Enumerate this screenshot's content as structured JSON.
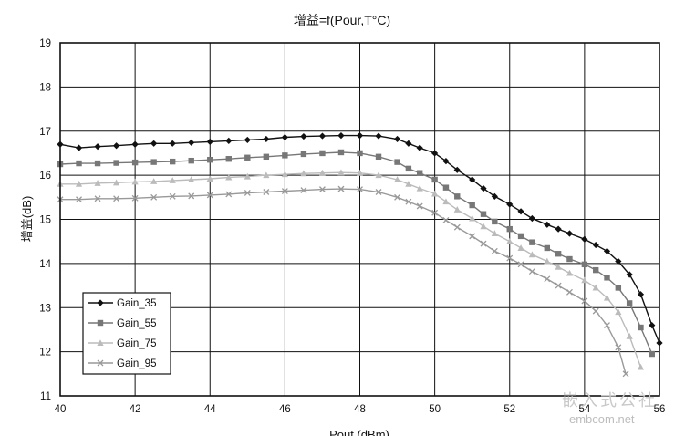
{
  "chart_data": {
    "type": "line",
    "title": "增益=f(Pour,T°C)",
    "xlabel": "Pout (dBm)",
    "ylabel": "增益(dB)",
    "xlim": [
      40,
      56
    ],
    "ylim": [
      11,
      19
    ],
    "xticks": [
      "40",
      "42",
      "44",
      "46",
      "48",
      "50",
      "52",
      "54",
      "56"
    ],
    "yticks": [
      "11",
      "12",
      "13",
      "14",
      "15",
      "16",
      "17",
      "18",
      "19"
    ],
    "grid": true,
    "legend_position": "bottom-left",
    "series": [
      {
        "name": "Gain_35",
        "color": "#111111",
        "marker": "diamond",
        "x": [
          40.0,
          40.5,
          41.0,
          41.5,
          42.0,
          42.5,
          43.0,
          43.5,
          44.0,
          44.5,
          45.0,
          45.5,
          46.0,
          46.5,
          47.0,
          47.5,
          48.0,
          48.5,
          49.0,
          49.3,
          49.6,
          50.0,
          50.3,
          50.6,
          51.0,
          51.3,
          51.6,
          52.0,
          52.3,
          52.6,
          53.0,
          53.3,
          53.6,
          54.0,
          54.3,
          54.6,
          54.9,
          55.2,
          55.5,
          55.8,
          56.0
        ],
        "y": [
          16.7,
          16.62,
          16.65,
          16.67,
          16.7,
          16.72,
          16.72,
          16.74,
          16.76,
          16.78,
          16.8,
          16.82,
          16.86,
          16.88,
          16.89,
          16.9,
          16.9,
          16.89,
          16.82,
          16.72,
          16.62,
          16.5,
          16.32,
          16.12,
          15.9,
          15.7,
          15.52,
          15.34,
          15.18,
          15.02,
          14.88,
          14.78,
          14.68,
          14.55,
          14.42,
          14.28,
          14.05,
          13.75,
          13.3,
          12.6,
          12.2
        ]
      },
      {
        "name": "Gain_55",
        "color": "#777777",
        "marker": "square",
        "x": [
          40.0,
          40.5,
          41.0,
          41.5,
          42.0,
          42.5,
          43.0,
          43.5,
          44.0,
          44.5,
          45.0,
          45.5,
          46.0,
          46.5,
          47.0,
          47.5,
          48.0,
          48.5,
          49.0,
          49.3,
          49.6,
          50.0,
          50.3,
          50.6,
          51.0,
          51.3,
          51.6,
          52.0,
          52.3,
          52.6,
          53.0,
          53.3,
          53.6,
          54.0,
          54.3,
          54.6,
          54.9,
          55.2,
          55.5,
          55.8
        ],
        "y": [
          16.25,
          16.27,
          16.27,
          16.28,
          16.29,
          16.3,
          16.31,
          16.33,
          16.35,
          16.37,
          16.4,
          16.42,
          16.45,
          16.48,
          16.5,
          16.52,
          16.5,
          16.42,
          16.3,
          16.15,
          16.05,
          15.9,
          15.72,
          15.52,
          15.32,
          15.12,
          14.95,
          14.78,
          14.62,
          14.48,
          14.35,
          14.22,
          14.1,
          13.98,
          13.85,
          13.68,
          13.45,
          13.1,
          12.55,
          11.95
        ]
      },
      {
        "name": "Gain_75",
        "color": "#bbbbbb",
        "marker": "triangle",
        "x": [
          40.0,
          40.5,
          41.0,
          41.5,
          42.0,
          42.5,
          43.0,
          43.5,
          44.0,
          44.5,
          45.0,
          45.5,
          46.0,
          46.5,
          47.0,
          47.5,
          48.0,
          48.5,
          49.0,
          49.3,
          49.6,
          50.0,
          50.3,
          50.6,
          51.0,
          51.3,
          51.6,
          52.0,
          52.3,
          52.6,
          53.0,
          53.3,
          53.6,
          54.0,
          54.3,
          54.6,
          54.9,
          55.2,
          55.5
        ],
        "y": [
          15.8,
          15.8,
          15.82,
          15.83,
          15.85,
          15.86,
          15.88,
          15.9,
          15.92,
          15.95,
          15.97,
          16.0,
          16.02,
          16.04,
          16.05,
          16.06,
          16.05,
          16.0,
          15.9,
          15.8,
          15.7,
          15.58,
          15.4,
          15.22,
          15.02,
          14.84,
          14.68,
          14.5,
          14.35,
          14.2,
          14.05,
          13.92,
          13.78,
          13.62,
          13.45,
          13.22,
          12.9,
          12.35,
          11.65
        ]
      },
      {
        "name": "Gain_95",
        "color": "#999999",
        "marker": "x",
        "x": [
          40.0,
          40.5,
          41.0,
          41.5,
          42.0,
          42.5,
          43.0,
          43.5,
          44.0,
          44.5,
          45.0,
          45.5,
          46.0,
          46.5,
          47.0,
          47.5,
          48.0,
          48.5,
          49.0,
          49.3,
          49.6,
          50.0,
          50.3,
          50.6,
          51.0,
          51.3,
          51.6,
          52.0,
          52.3,
          52.6,
          53.0,
          53.3,
          53.6,
          54.0,
          54.3,
          54.6,
          54.9,
          55.1
        ],
        "y": [
          15.45,
          15.45,
          15.47,
          15.47,
          15.48,
          15.5,
          15.52,
          15.53,
          15.55,
          15.57,
          15.6,
          15.62,
          15.64,
          15.66,
          15.68,
          15.69,
          15.68,
          15.62,
          15.5,
          15.4,
          15.3,
          15.15,
          14.98,
          14.82,
          14.62,
          14.45,
          14.28,
          14.12,
          13.98,
          13.82,
          13.65,
          13.5,
          13.35,
          13.15,
          12.92,
          12.6,
          12.1,
          11.5
        ]
      }
    ]
  },
  "watermark": {
    "cn": "嵌入式公社",
    "en": "embcom.net"
  }
}
